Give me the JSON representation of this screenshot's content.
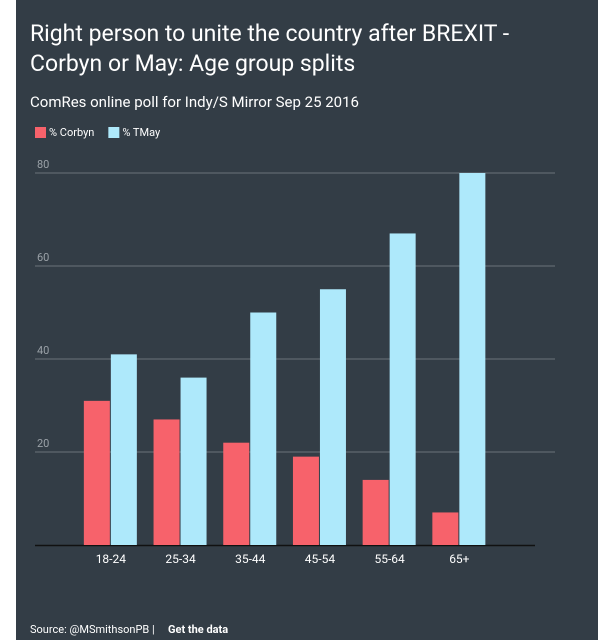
{
  "chart_data": {
    "type": "bar",
    "title": [
      "Right person to unite the country after BREXIT -",
      "Corbyn or May: Age group splits"
    ],
    "subtitle": "ComRes online poll for Indy/S Mirror Sep 25 2016",
    "categories": [
      "18-24",
      "25-34",
      "35-44",
      "45-54",
      "55-64",
      "65+"
    ],
    "series": [
      {
        "name": "% Corbyn",
        "color": "#f7626b",
        "values": [
          31,
          27,
          22,
          19,
          14,
          7
        ]
      },
      {
        "name": "% TMay",
        "color": "#aee9fb",
        "values": [
          41,
          36,
          50,
          55,
          67,
          80
        ]
      }
    ],
    "ylim": [
      0,
      80
    ],
    "yticks": [
      20,
      40,
      60,
      80
    ],
    "grid": true,
    "legend": "top-left",
    "source": "Source: @MSmithsonPB |",
    "link": "Get the data"
  }
}
